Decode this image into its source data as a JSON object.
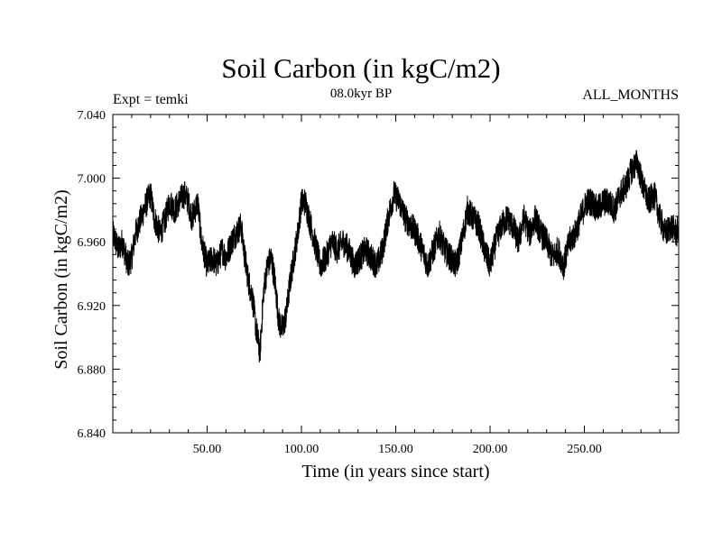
{
  "chart_data": {
    "type": "line",
    "title": "Soil Carbon (in kgC/m2)",
    "subtitle": "08.0kyr BP",
    "left_annotation": "Expt = temki",
    "right_annotation": "ALL_MONTHS",
    "xlabel": "Time (in years since start)",
    "ylabel": "Soil Carbon (in kgC/m2)",
    "xlim": [
      0,
      300
    ],
    "ylim": [
      6.84,
      7.04
    ],
    "x_ticks": [
      50,
      100,
      150,
      200,
      250
    ],
    "x_tick_labels": [
      "50.00",
      "100.00",
      "150.00",
      "200.00",
      "250.00"
    ],
    "y_ticks": [
      6.84,
      6.88,
      6.92,
      6.96,
      7.0,
      7.04
    ],
    "y_tick_labels": [
      "6.840",
      "6.880",
      "6.920",
      "6.960",
      "7.000",
      "7.040"
    ],
    "series": [
      {
        "name": "Soil Carbon",
        "x": [
          0,
          3,
          5,
          8,
          10,
          12,
          15,
          18,
          20,
          22,
          25,
          28,
          30,
          33,
          35,
          38,
          40,
          42,
          45,
          47,
          50,
          53,
          55,
          58,
          60,
          63,
          65,
          68,
          70,
          72,
          74,
          76,
          78,
          80,
          82,
          84,
          86,
          88,
          90,
          92,
          94,
          96,
          98,
          100,
          102,
          104,
          106,
          108,
          110,
          113,
          116,
          119,
          122,
          125,
          128,
          131,
          134,
          137,
          140,
          143,
          146,
          149,
          152,
          155,
          158,
          161,
          164,
          167,
          170,
          173,
          176,
          179,
          182,
          185,
          188,
          191,
          194,
          197,
          200,
          203,
          206,
          209,
          212,
          215,
          218,
          221,
          224,
          227,
          230,
          233,
          236,
          239,
          242,
          245,
          248,
          251,
          254,
          257,
          260,
          263,
          266,
          269,
          272,
          275,
          278,
          281,
          284,
          287,
          290,
          293,
          296,
          299,
          300
        ],
        "values": [
          6.965,
          6.955,
          6.96,
          6.945,
          6.95,
          6.965,
          6.975,
          6.985,
          6.99,
          6.975,
          6.965,
          6.975,
          6.985,
          6.98,
          6.985,
          6.99,
          6.985,
          6.975,
          6.985,
          6.96,
          6.945,
          6.95,
          6.945,
          6.955,
          6.95,
          6.96,
          6.965,
          6.97,
          6.95,
          6.935,
          6.925,
          6.905,
          6.89,
          6.93,
          6.945,
          6.95,
          6.935,
          6.91,
          6.905,
          6.915,
          6.935,
          6.95,
          6.965,
          6.985,
          6.985,
          6.975,
          6.965,
          6.955,
          6.945,
          6.95,
          6.96,
          6.955,
          6.96,
          6.955,
          6.945,
          6.95,
          6.955,
          6.95,
          6.945,
          6.955,
          6.975,
          6.99,
          6.985,
          6.975,
          6.97,
          6.965,
          6.955,
          6.945,
          6.955,
          6.965,
          6.955,
          6.95,
          6.945,
          6.96,
          6.98,
          6.975,
          6.97,
          6.955,
          6.945,
          6.96,
          6.97,
          6.975,
          6.97,
          6.96,
          6.975,
          6.965,
          6.975,
          6.965,
          6.96,
          6.95,
          6.955,
          6.945,
          6.96,
          6.965,
          6.975,
          6.985,
          6.985,
          6.98,
          6.985,
          6.985,
          6.98,
          6.99,
          6.995,
          7.005,
          7.01,
          6.995,
          6.985,
          6.99,
          6.975,
          6.965,
          6.97,
          6.965,
          6.97
        ]
      }
    ]
  }
}
